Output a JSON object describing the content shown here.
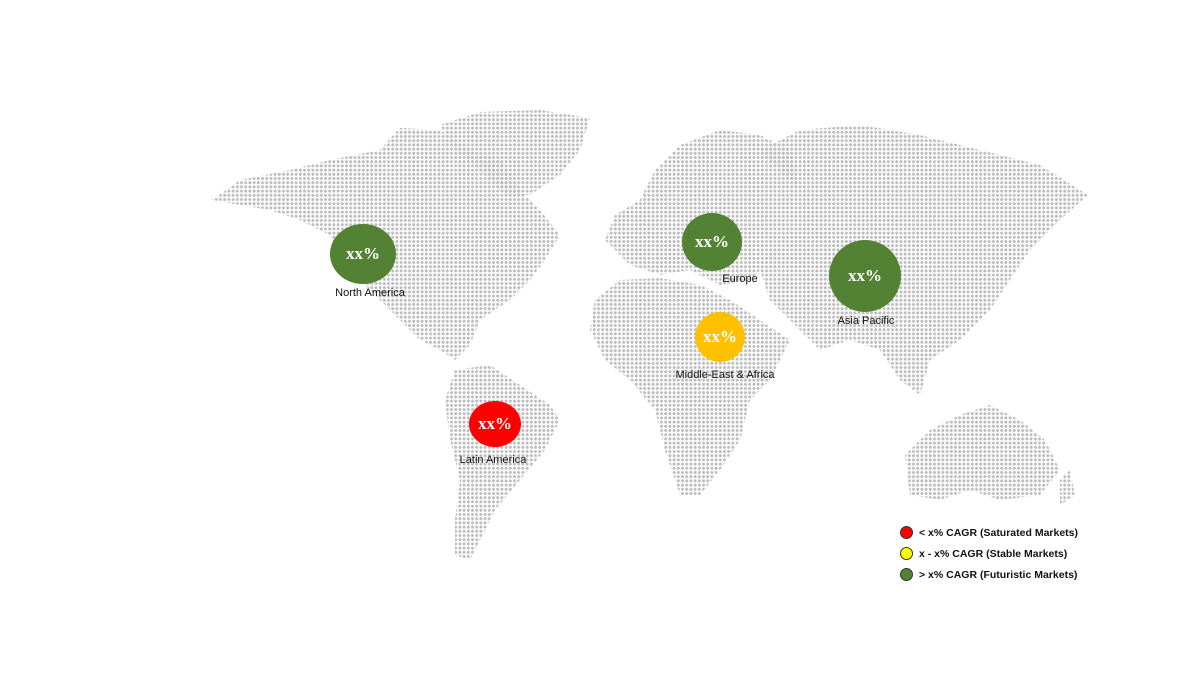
{
  "colors": {
    "saturated": "#FF0000",
    "stable": "#FFFF00",
    "futuristic": "#548235",
    "mea_bubble": "#FFC000",
    "map_dots": "#BDBDBD"
  },
  "regions": [
    {
      "name": "North America",
      "value": "xx%",
      "category": "futuristic"
    },
    {
      "name": "Europe",
      "value": "xx%",
      "category": "futuristic"
    },
    {
      "name": "Asia Pacific",
      "value": "xx%",
      "category": "futuristic"
    },
    {
      "name": "Middle-East & Africa",
      "value": "xx%",
      "category": "stable"
    },
    {
      "name": "Latin America",
      "value": "xx%",
      "category": "saturated"
    }
  ],
  "legend": [
    {
      "label": "< x% CAGR (Saturated Markets)",
      "color": "#FF0000"
    },
    {
      "label": "x - x% CAGR (Stable Markets)",
      "color": "#FFFF00"
    },
    {
      "label": "> x% CAGR (Futuristic Markets)",
      "color": "#548235"
    }
  ]
}
